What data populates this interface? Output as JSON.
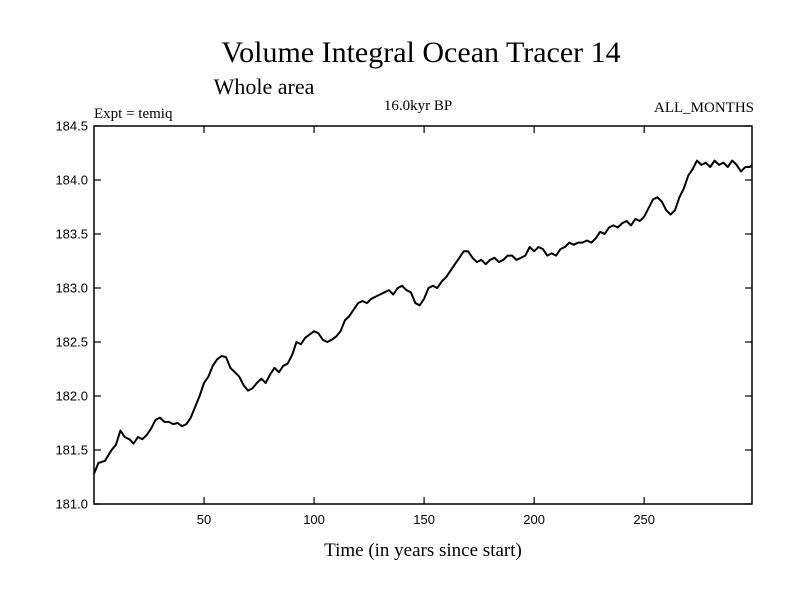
{
  "chart_data": {
    "type": "line",
    "title": "Volume Integral Ocean Tracer 14",
    "subtitle": "Whole area",
    "annotations": {
      "left": "Expt = temiq",
      "center": "16.0kyr BP",
      "right": "ALL_MONTHS"
    },
    "xlabel": "Time (in years since start)",
    "ylabel": "",
    "xlim": [
      0,
      299
    ],
    "ylim": [
      181.0,
      184.5
    ],
    "xticks": [
      50,
      100,
      150,
      200,
      250
    ],
    "yticks": [
      181.0,
      181.5,
      182.0,
      182.5,
      183.0,
      183.5,
      184.0,
      184.5
    ],
    "ytick_labels": [
      "181.0",
      "181.5",
      "182.0",
      "182.5",
      "183.0",
      "183.5",
      "184.0",
      "184.5"
    ],
    "grid": false,
    "legend": "none",
    "series": [
      {
        "x": [
          0,
          2,
          5,
          8,
          10,
          12,
          14,
          16,
          18,
          20,
          22,
          24,
          26,
          28,
          30,
          32,
          34,
          36,
          38,
          40,
          42,
          44,
          46,
          48,
          50,
          52,
          54,
          56,
          58,
          60,
          62,
          64,
          66,
          68,
          70,
          72,
          74,
          76,
          78,
          80,
          82,
          84,
          86,
          88,
          90,
          92,
          94,
          96,
          98,
          100,
          102,
          104,
          106,
          108,
          110,
          112,
          114,
          116,
          118,
          120,
          122,
          124,
          126,
          128,
          130,
          132,
          134,
          136,
          138,
          140,
          142,
          144,
          146,
          148,
          150,
          152,
          154,
          156,
          158,
          160,
          162,
          164,
          166,
          168,
          170,
          172,
          174,
          176,
          178,
          180,
          182,
          184,
          186,
          188,
          190,
          192,
          194,
          196,
          198,
          200,
          202,
          204,
          206,
          208,
          210,
          212,
          214,
          216,
          218,
          220,
          222,
          224,
          226,
          228,
          230,
          232,
          234,
          236,
          238,
          240,
          242,
          244,
          246,
          248,
          250,
          252,
          254,
          256,
          258,
          260,
          262,
          264,
          266,
          268,
          270,
          272,
          274,
          276,
          278,
          280,
          282,
          284,
          286,
          288,
          290,
          292,
          294,
          296,
          298,
          299
        ],
        "y": [
          181.28,
          181.38,
          181.4,
          181.5,
          181.55,
          181.68,
          181.62,
          181.6,
          181.56,
          181.62,
          181.6,
          181.64,
          181.7,
          181.78,
          181.8,
          181.76,
          181.76,
          181.74,
          181.75,
          181.72,
          181.74,
          181.8,
          181.9,
          182.0,
          182.12,
          182.18,
          182.28,
          182.34,
          182.37,
          182.36,
          182.26,
          182.22,
          182.18,
          182.1,
          182.05,
          182.07,
          182.12,
          182.16,
          182.12,
          182.2,
          182.26,
          182.22,
          182.28,
          182.3,
          182.38,
          182.5,
          182.48,
          182.54,
          182.57,
          182.6,
          182.58,
          182.52,
          182.5,
          182.52,
          182.55,
          182.6,
          182.7,
          182.74,
          182.8,
          182.86,
          182.88,
          182.86,
          182.9,
          182.92,
          182.94,
          182.96,
          182.98,
          182.94,
          183.0,
          183.02,
          182.98,
          182.96,
          182.86,
          182.84,
          182.9,
          183.0,
          183.02,
          183.0,
          183.06,
          183.1,
          183.16,
          183.22,
          183.28,
          183.34,
          183.34,
          183.28,
          183.24,
          183.26,
          183.22,
          183.26,
          183.28,
          183.24,
          183.26,
          183.3,
          183.3,
          183.26,
          183.28,
          183.3,
          183.38,
          183.34,
          183.38,
          183.36,
          183.3,
          183.32,
          183.3,
          183.36,
          183.38,
          183.42,
          183.4,
          183.42,
          183.42,
          183.44,
          183.42,
          183.46,
          183.52,
          183.5,
          183.56,
          183.58,
          183.56,
          183.6,
          183.62,
          183.58,
          183.64,
          183.62,
          183.66,
          183.74,
          183.82,
          183.84,
          183.8,
          183.72,
          183.68,
          183.72,
          183.84,
          183.92,
          184.04,
          184.1,
          184.18,
          184.14,
          184.16,
          184.12,
          184.18,
          184.14,
          184.16,
          184.12,
          184.18,
          184.14,
          184.08,
          184.12,
          184.12,
          184.14
        ]
      }
    ]
  }
}
